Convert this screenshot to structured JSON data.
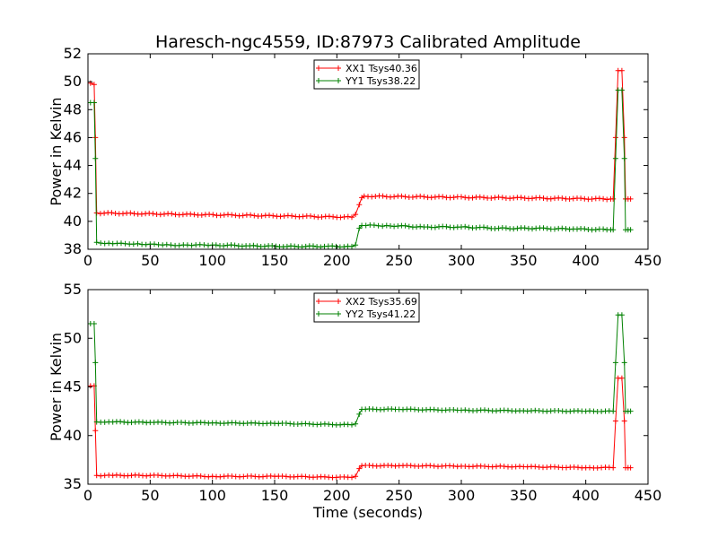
{
  "figure": {
    "title": "Haresch-ngc4559, ID:87973 Calibrated Amplitude",
    "xlabel": "Time (seconds)"
  },
  "chart_data": [
    {
      "type": "line",
      "ylabel": "Power in Kelvin",
      "xlim": [
        0,
        450
      ],
      "ylim": [
        38,
        52
      ],
      "xticks": [
        "0",
        "50",
        "100",
        "150",
        "200",
        "250",
        "300",
        "350",
        "400",
        "450"
      ],
      "yticks": [
        "38",
        "40",
        "42",
        "44",
        "46",
        "48",
        "50",
        "52"
      ],
      "legend_position": "top-center",
      "series": [
        {
          "name": "XX1 Tsys40.36",
          "color": "#ff0000",
          "segments": [
            {
              "x_start": 8,
              "x_end": 212,
              "y": 40.6,
              "endpoints": [
                40.6,
                40.3
              ]
            },
            {
              "x_start": 222,
              "x_end": 420,
              "y": 41.8,
              "endpoints": [
                41.8,
                41.6
              ]
            }
          ],
          "points": [
            [
              2,
              49.9
            ],
            [
              5,
              49.8
            ],
            [
              6,
              46
            ],
            [
              7,
              40.6
            ],
            [
              212,
              40.3
            ],
            [
              215,
              40.5
            ],
            [
              218,
              41.2
            ],
            [
              220,
              41.7
            ],
            [
              222,
              41.8
            ],
            [
              420,
              41.6
            ],
            [
              422,
              41.6
            ],
            [
              424,
              46
            ],
            [
              426,
              50.8
            ],
            [
              429,
              50.8
            ],
            [
              431,
              46
            ],
            [
              432,
              41.6
            ],
            [
              434,
              41.6
            ],
            [
              436,
              41.6
            ]
          ]
        },
        {
          "name": "YY1 Tsys38.22",
          "color": "#008000",
          "points": [
            [
              2,
              48.5
            ],
            [
              5,
              48.5
            ],
            [
              6,
              44.5
            ],
            [
              7,
              38.5
            ],
            [
              20,
              38.4
            ],
            [
              40,
              38.4
            ],
            [
              60,
              38.3
            ],
            [
              80,
              38.3
            ],
            [
              100,
              38.3
            ],
            [
              130,
              38.25
            ],
            [
              160,
              38.2
            ],
            [
              190,
              38.2
            ],
            [
              212,
              38.2
            ],
            [
              215,
              38.3
            ],
            [
              218,
              39.5
            ],
            [
              220,
              39.7
            ],
            [
              240,
              39.7
            ],
            [
              270,
              39.6
            ],
            [
              300,
              39.6
            ],
            [
              330,
              39.5
            ],
            [
              360,
              39.5
            ],
            [
              390,
              39.45
            ],
            [
              420,
              39.4
            ],
            [
              422,
              39.4
            ],
            [
              424,
              44.5
            ],
            [
              426,
              49.4
            ],
            [
              429,
              49.4
            ],
            [
              431,
              44.5
            ],
            [
              432,
              39.4
            ],
            [
              434,
              39.4
            ],
            [
              436,
              39.4
            ]
          ]
        }
      ]
    },
    {
      "type": "line",
      "ylabel": "Power in Kelvin",
      "xlim": [
        0,
        450
      ],
      "ylim": [
        35,
        55
      ],
      "xticks": [
        "0",
        "50",
        "100",
        "150",
        "200",
        "250",
        "300",
        "350",
        "400",
        "450"
      ],
      "yticks": [
        "35",
        "40",
        "45",
        "50",
        "55"
      ],
      "legend_position": "top-center",
      "series": [
        {
          "name": "XX2 Tsys35.69",
          "color": "#ff0000",
          "points": [
            [
              2,
              45.1
            ],
            [
              5,
              45.1
            ],
            [
              6,
              40.5
            ],
            [
              7,
              35.9
            ],
            [
              20,
              35.9
            ],
            [
              50,
              35.9
            ],
            [
              100,
              35.8
            ],
            [
              150,
              35.8
            ],
            [
              212,
              35.7
            ],
            [
              215,
              35.8
            ],
            [
              218,
              36.6
            ],
            [
              220,
              36.9
            ],
            [
              250,
              36.9
            ],
            [
              300,
              36.85
            ],
            [
              350,
              36.8
            ],
            [
              400,
              36.7
            ],
            [
              422,
              36.7
            ],
            [
              424,
              41.5
            ],
            [
              426,
              45.9
            ],
            [
              429,
              45.9
            ],
            [
              431,
              41.5
            ],
            [
              432,
              36.7
            ],
            [
              434,
              36.7
            ],
            [
              436,
              36.7
            ]
          ]
        },
        {
          "name": "YY2 Tsys41.22",
          "color": "#008000",
          "points": [
            [
              2,
              51.5
            ],
            [
              5,
              51.5
            ],
            [
              6,
              47.5
            ],
            [
              7,
              41.4
            ],
            [
              20,
              41.4
            ],
            [
              50,
              41.35
            ],
            [
              100,
              41.3
            ],
            [
              150,
              41.25
            ],
            [
              212,
              41.1
            ],
            [
              215,
              41.2
            ],
            [
              218,
              42.2
            ],
            [
              220,
              42.7
            ],
            [
              250,
              42.7
            ],
            [
              300,
              42.6
            ],
            [
              350,
              42.55
            ],
            [
              400,
              42.5
            ],
            [
              422,
              42.5
            ],
            [
              424,
              47.5
            ],
            [
              426,
              52.4
            ],
            [
              429,
              52.4
            ],
            [
              431,
              47.5
            ],
            [
              432,
              42.5
            ],
            [
              434,
              42.5
            ],
            [
              436,
              42.5
            ]
          ]
        }
      ]
    }
  ]
}
